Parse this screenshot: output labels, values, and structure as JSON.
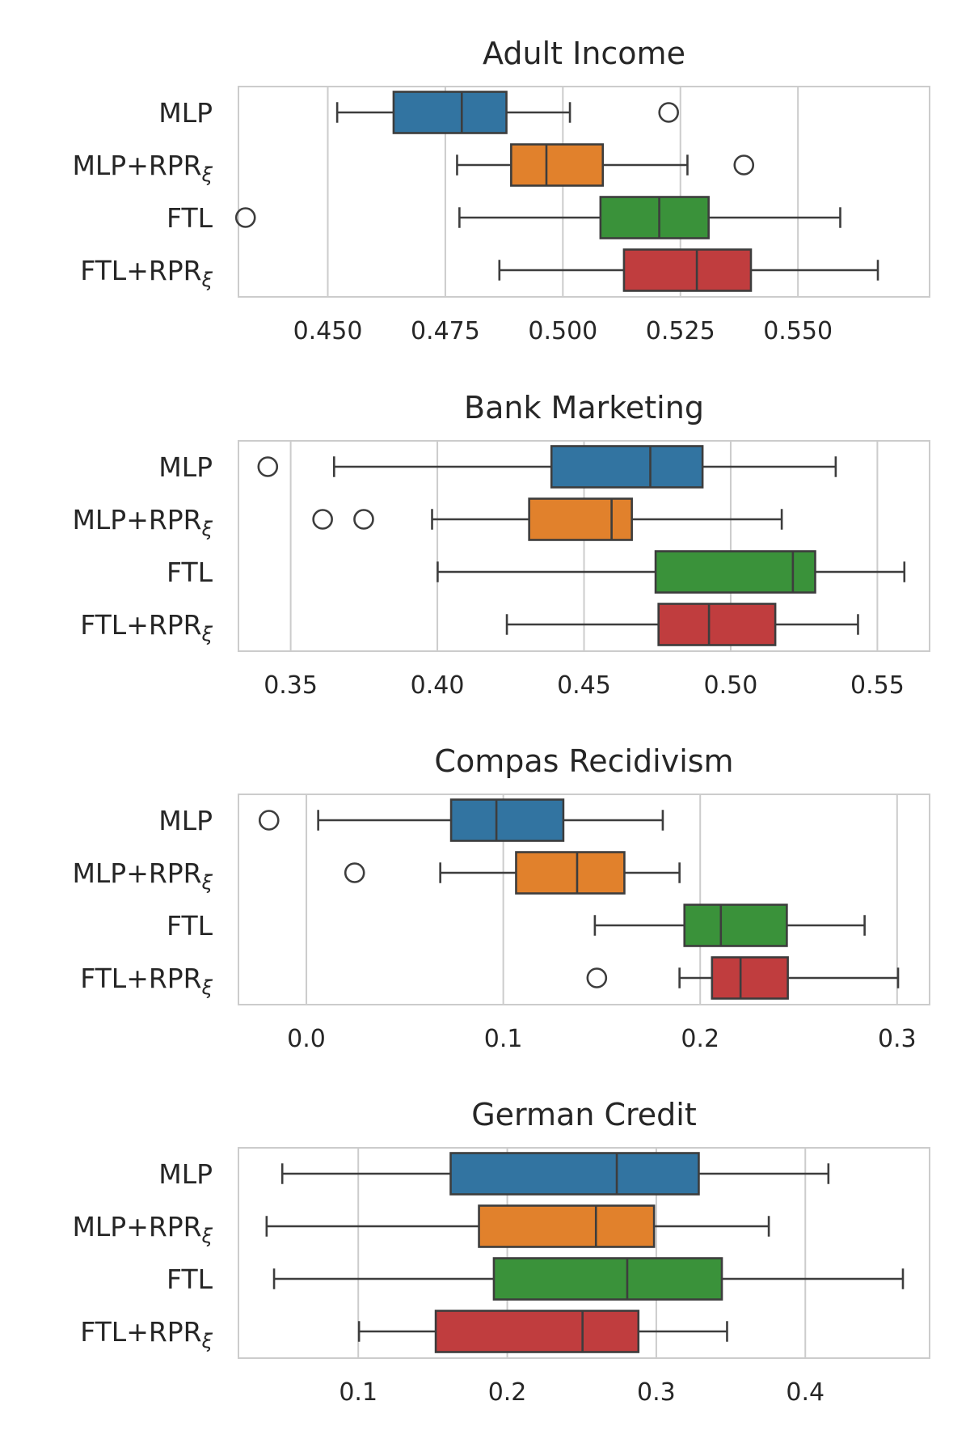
{
  "chart_data": [
    {
      "type": "boxplot",
      "orientation": "horizontal",
      "title": "Adult Income",
      "xlim": [
        0.431,
        0.578
      ],
      "xticks": [
        0.45,
        0.475,
        0.5,
        0.525,
        0.55
      ],
      "xtick_labels": [
        "0.450",
        "0.475",
        "0.500",
        "0.525",
        "0.550"
      ],
      "grid": "x",
      "categories": [
        {
          "label": "MLP",
          "label_sub": "",
          "color": "#3274a1",
          "whisker_low": 0.452,
          "q1": 0.464,
          "median": 0.4785,
          "q3": 0.488,
          "whisker_high": 0.5015,
          "outliers": [
            0.5225
          ]
        },
        {
          "label": "MLP+RPR",
          "label_sub": "ξ",
          "color": "#e1812c",
          "whisker_low": 0.4775,
          "q1": 0.489,
          "median": 0.4965,
          "q3": 0.5085,
          "whisker_high": 0.5265,
          "outliers": [
            0.5385
          ]
        },
        {
          "label": "FTL",
          "label_sub": "",
          "color": "#3a923a",
          "whisker_low": 0.478,
          "q1": 0.508,
          "median": 0.5205,
          "q3": 0.531,
          "whisker_high": 0.559,
          "outliers": [
            0.4325
          ]
        },
        {
          "label": "FTL+RPR",
          "label_sub": "ξ",
          "color": "#c03d3e",
          "whisker_low": 0.4865,
          "q1": 0.513,
          "median": 0.5285,
          "q3": 0.54,
          "whisker_high": 0.567,
          "outliers": []
        }
      ]
    },
    {
      "type": "boxplot",
      "orientation": "horizontal",
      "title": "Bank Marketing",
      "xlim": [
        0.3322,
        0.5678
      ],
      "xticks": [
        0.35,
        0.4,
        0.45,
        0.5,
        0.55
      ],
      "xtick_labels": [
        "0.35",
        "0.40",
        "0.45",
        "0.50",
        "0.55"
      ],
      "grid": "x",
      "categories": [
        {
          "label": "MLP",
          "label_sub": "",
          "color": "#3274a1",
          "whisker_low": 0.3648,
          "q1": 0.4389,
          "median": 0.4726,
          "q3": 0.4904,
          "whisker_high": 0.5358,
          "outliers": [
            0.3422
          ]
        },
        {
          "label": "MLP+RPR",
          "label_sub": "ξ",
          "color": "#e1812c",
          "whisker_low": 0.3982,
          "q1": 0.4313,
          "median": 0.4594,
          "q3": 0.4663,
          "whisker_high": 0.5174,
          "outliers": [
            0.3609,
            0.3749
          ]
        },
        {
          "label": "FTL",
          "label_sub": "",
          "color": "#3a923a",
          "whisker_low": 0.4001,
          "q1": 0.4744,
          "median": 0.5212,
          "q3": 0.5288,
          "whisker_high": 0.5592,
          "outliers": []
        },
        {
          "label": "FTL+RPR",
          "label_sub": "ξ",
          "color": "#c03d3e",
          "whisker_low": 0.4237,
          "q1": 0.4754,
          "median": 0.4926,
          "q3": 0.5152,
          "whisker_high": 0.5434,
          "outliers": []
        }
      ]
    },
    {
      "type": "boxplot",
      "orientation": "horizontal",
      "title": "Compas Recidivism",
      "xlim": [
        -0.0345,
        0.3165
      ],
      "xticks": [
        0.0,
        0.1,
        0.2,
        0.3
      ],
      "xtick_labels": [
        "0.0",
        "0.1",
        "0.2",
        "0.3"
      ],
      "grid": "x",
      "categories": [
        {
          "label": "MLP",
          "label_sub": "",
          "color": "#3274a1",
          "whisker_low": 0.006,
          "q1": 0.0735,
          "median": 0.0965,
          "q3": 0.1305,
          "whisker_high": 0.181,
          "outliers": [
            -0.019
          ]
        },
        {
          "label": "MLP+RPR",
          "label_sub": "ξ",
          "color": "#e1812c",
          "whisker_low": 0.068,
          "q1": 0.1065,
          "median": 0.1375,
          "q3": 0.1615,
          "whisker_high": 0.1895,
          "outliers": [
            0.0245
          ]
        },
        {
          "label": "FTL",
          "label_sub": "",
          "color": "#3a923a",
          "whisker_low": 0.1465,
          "q1": 0.192,
          "median": 0.2105,
          "q3": 0.244,
          "whisker_high": 0.2835,
          "outliers": []
        },
        {
          "label": "FTL+RPR",
          "label_sub": "ξ",
          "color": "#c03d3e",
          "whisker_low": 0.1895,
          "q1": 0.206,
          "median": 0.2205,
          "q3": 0.2445,
          "whisker_high": 0.3005,
          "outliers": [
            0.1475
          ]
        }
      ]
    },
    {
      "type": "boxplot",
      "orientation": "horizontal",
      "title": "German Credit",
      "xlim": [
        0.0196,
        0.4834
      ],
      "xticks": [
        0.1,
        0.2,
        0.3,
        0.4
      ],
      "xtick_labels": [
        "0.1",
        "0.2",
        "0.3",
        "0.4"
      ],
      "grid": "x",
      "categories": [
        {
          "label": "MLP",
          "label_sub": "",
          "color": "#3274a1",
          "whisker_low": 0.049,
          "q1": 0.162,
          "median": 0.2735,
          "q3": 0.3285,
          "whisker_high": 0.4155,
          "outliers": []
        },
        {
          "label": "MLP+RPR",
          "label_sub": "ξ",
          "color": "#e1812c",
          "whisker_low": 0.0385,
          "q1": 0.181,
          "median": 0.2595,
          "q3": 0.2985,
          "whisker_high": 0.3755,
          "outliers": []
        },
        {
          "label": "FTL",
          "label_sub": "",
          "color": "#3a923a",
          "whisker_low": 0.0435,
          "q1": 0.191,
          "median": 0.2805,
          "q3": 0.344,
          "whisker_high": 0.4655,
          "outliers": []
        },
        {
          "label": "FTL+RPR",
          "label_sub": "ξ",
          "color": "#c03d3e",
          "whisker_low": 0.1005,
          "q1": 0.152,
          "median": 0.2505,
          "q3": 0.288,
          "whisker_high": 0.3475,
          "outliers": []
        }
      ]
    }
  ]
}
